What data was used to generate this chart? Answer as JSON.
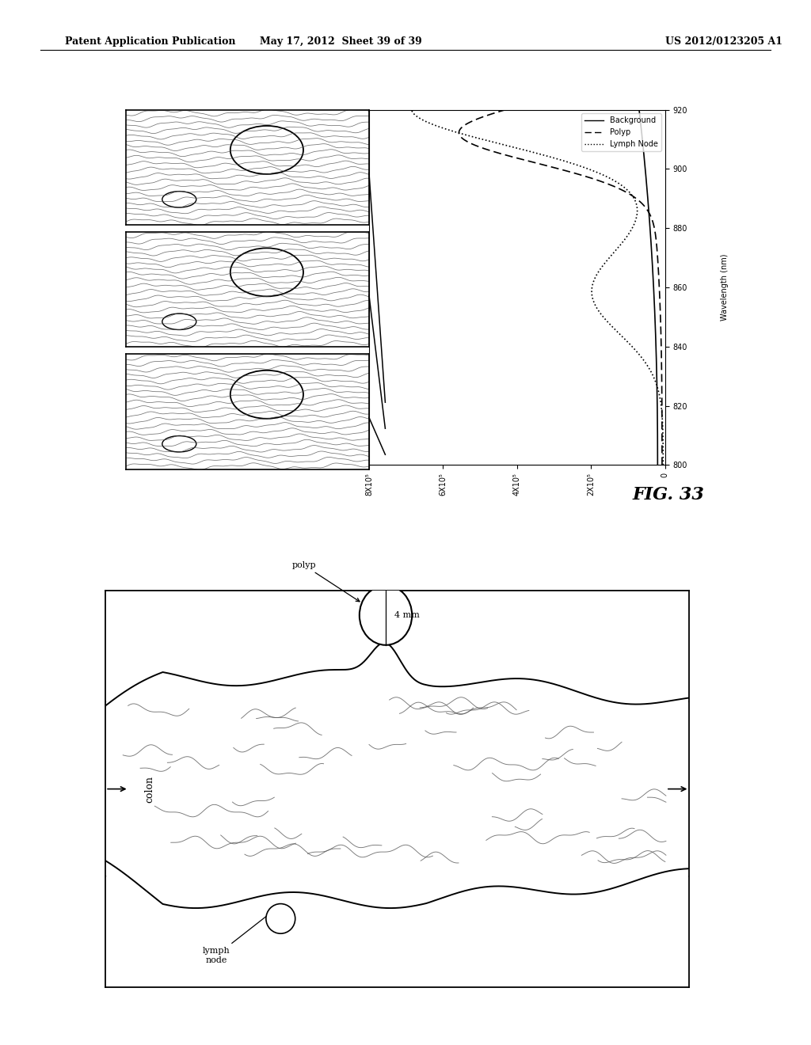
{
  "header_left": "Patent Application Publication",
  "header_mid": "May 17, 2012  Sheet 39 of 39",
  "header_right": "US 2012/0123205 A1",
  "fig_label": "FIG. 33",
  "page_bg": "#ffffff",
  "border_color": "#000000",
  "legend_items": [
    "Background",
    "Polyp",
    "Lymph Node"
  ],
  "x_label": "Wavelength (nm)",
  "x_ticks": [
    800,
    820,
    840,
    860,
    880,
    900,
    920
  ],
  "y_ticks_labels": [
    "0",
    "2X10⁵",
    "4X10⁵",
    "6X10⁵",
    "8X10⁵"
  ],
  "y_ticks_vals": [
    0,
    200000,
    400000,
    600000,
    800000
  ],
  "colon_label": "colon",
  "polyp_label": "polyp",
  "polyp_size_label": "4 mm",
  "lymph_label": "lymph\nnode"
}
